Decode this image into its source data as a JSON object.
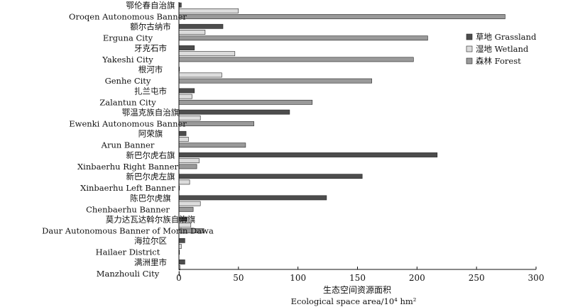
{
  "chart_data": {
    "type": "bar",
    "orientation": "horizontal",
    "categories": [
      {
        "zh": "鄂伦春自治旗",
        "en": "Oroqen Autonomous Banner"
      },
      {
        "zh": "额尔古纳市",
        "en": "Erguna City"
      },
      {
        "zh": "牙克石市",
        "en": "Yakeshi City"
      },
      {
        "zh": "根河市",
        "en": "Genhe City"
      },
      {
        "zh": "扎兰屯市",
        "en": "Zalantun City"
      },
      {
        "zh": "鄂温克族自治旗",
        "en": "Ewenki Autonomous Banner"
      },
      {
        "zh": "阿荣旗",
        "en": "Arun Banner"
      },
      {
        "zh": "新巴尔虎右旗",
        "en": "Xinbaerhu Right Banner"
      },
      {
        "zh": "新巴尔虎左旗",
        "en": "Xinbaerhu Left Banner"
      },
      {
        "zh": "陈巴尔虎旗",
        "en": "Chenbaerhu Banner"
      },
      {
        "zh": "莫力达瓦达斡尔族自治旗",
        "en": "Daur Autonomous Banner of Morin Dawa"
      },
      {
        "zh": "海拉尔区",
        "en": "Hailaer District"
      },
      {
        "zh": "满洲里市",
        "en": "Manzhouli City"
      }
    ],
    "series": [
      {
        "name": "草地 Grassland",
        "color": "#4d4d4d",
        "values": [
          2,
          37,
          13,
          0.5,
          13,
          93,
          6,
          217,
          154,
          124,
          7,
          5,
          5
        ]
      },
      {
        "name": "湿地 Wetland",
        "color": "#dcdcdc",
        "values": [
          50,
          22,
          47,
          36,
          11,
          18,
          8,
          17,
          9,
          18,
          10,
          2,
          1
        ]
      },
      {
        "name": "森林 Forest",
        "color": "#9a9a9a",
        "values": [
          274,
          209,
          197,
          162,
          112,
          63,
          56,
          15,
          0.5,
          12,
          21,
          0.5,
          0.5
        ]
      }
    ],
    "xlim": [
      0,
      300
    ],
    "x_ticks": [
      0,
      50,
      100,
      150,
      200,
      250,
      300
    ],
    "xlabel_zh": "生态空间资源面积",
    "xlabel_en": "Ecological space area/10⁴ hm²",
    "legend_position": "right",
    "grid": false
  }
}
